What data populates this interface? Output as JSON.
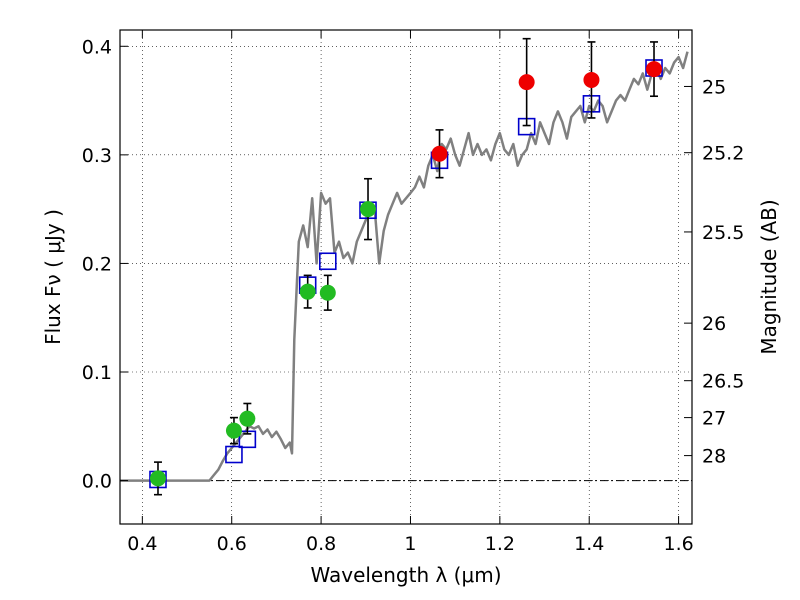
{
  "chart_data": {
    "type": "scatter",
    "xlabel": "Wavelength  λ (μm)",
    "ylabel": "Flux  Fν  ( μJy )",
    "y2label": "Magnitude (AB)",
    "xlim": [
      0.35,
      1.63
    ],
    "ylim": [
      -0.04,
      0.415
    ],
    "grid": true,
    "x_ticks": [
      0.4,
      0.6,
      0.8,
      1.0,
      1.2,
      1.4,
      1.6
    ],
    "x_tick_labels": [
      "0.4",
      "0.6",
      "0.8",
      "1",
      "1.2",
      "1.4",
      "1.6"
    ],
    "y_ticks": [
      0.0,
      0.1,
      0.2,
      0.3,
      0.4
    ],
    "y_tick_labels": [
      "0.0",
      "0.1",
      "0.2",
      "0.3",
      "0.4"
    ],
    "y2_ticks": [
      {
        "label": "25",
        "flux": 0.363
      },
      {
        "label": "25.2",
        "flux": 0.302
      },
      {
        "label": "25.5",
        "flux": 0.229
      },
      {
        "label": "26",
        "flux": 0.145
      },
      {
        "label": "26.5",
        "flux": 0.092
      },
      {
        "label": "27",
        "flux": 0.058
      },
      {
        "label": "28",
        "flux": 0.023
      }
    ],
    "colors": {
      "model": "#808080",
      "model_photometry": "#0000cc",
      "green_points": "#22bb22",
      "red_points": "#ee0000",
      "errorbars": "#000000"
    },
    "series": [
      {
        "type": "line",
        "x": [
          0.35,
          0.55,
          0.56,
          0.57,
          0.58,
          0.59,
          0.6,
          0.61,
          0.62,
          0.63,
          0.64,
          0.65,
          0.66,
          0.67,
          0.68,
          0.69,
          0.7,
          0.71,
          0.72,
          0.73,
          0.735,
          0.74,
          0.75,
          0.76,
          0.77,
          0.78,
          0.79,
          0.8,
          0.81,
          0.82,
          0.83,
          0.84,
          0.85,
          0.86,
          0.87,
          0.88,
          0.89,
          0.9,
          0.91,
          0.92,
          0.93,
          0.94,
          0.95,
          0.96,
          0.97,
          0.98,
          0.99,
          1.0,
          1.01,
          1.02,
          1.03,
          1.04,
          1.05,
          1.06,
          1.07,
          1.08,
          1.09,
          1.1,
          1.11,
          1.12,
          1.13,
          1.14,
          1.15,
          1.16,
          1.17,
          1.18,
          1.19,
          1.2,
          1.21,
          1.22,
          1.23,
          1.24,
          1.25,
          1.26,
          1.27,
          1.28,
          1.29,
          1.3,
          1.31,
          1.32,
          1.33,
          1.34,
          1.35,
          1.36,
          1.37,
          1.38,
          1.39,
          1.4,
          1.41,
          1.42,
          1.43,
          1.44,
          1.45,
          1.46,
          1.47,
          1.48,
          1.49,
          1.5,
          1.51,
          1.52,
          1.53,
          1.54,
          1.55,
          1.56,
          1.57,
          1.58,
          1.59,
          1.6,
          1.61,
          1.62
        ],
        "y": [
          0.0,
          0.0,
          0.005,
          0.01,
          0.018,
          0.025,
          0.03,
          0.035,
          0.04,
          0.045,
          0.05,
          0.048,
          0.05,
          0.043,
          0.047,
          0.04,
          0.045,
          0.038,
          0.03,
          0.035,
          0.025,
          0.13,
          0.22,
          0.235,
          0.215,
          0.26,
          0.2,
          0.265,
          0.255,
          0.26,
          0.21,
          0.22,
          0.205,
          0.21,
          0.2,
          0.22,
          0.23,
          0.24,
          0.255,
          0.25,
          0.2,
          0.23,
          0.245,
          0.255,
          0.265,
          0.255,
          0.26,
          0.265,
          0.27,
          0.28,
          0.27,
          0.29,
          0.3,
          0.285,
          0.31,
          0.305,
          0.315,
          0.3,
          0.29,
          0.305,
          0.32,
          0.3,
          0.31,
          0.3,
          0.305,
          0.295,
          0.31,
          0.32,
          0.305,
          0.3,
          0.31,
          0.29,
          0.3,
          0.305,
          0.32,
          0.31,
          0.33,
          0.32,
          0.31,
          0.33,
          0.34,
          0.33,
          0.315,
          0.335,
          0.34,
          0.345,
          0.33,
          0.345,
          0.34,
          0.35,
          0.345,
          0.33,
          0.34,
          0.35,
          0.355,
          0.35,
          0.36,
          0.37,
          0.365,
          0.375,
          0.36,
          0.375,
          0.38,
          0.37,
          0.38,
          0.375,
          0.385,
          0.39,
          0.38,
          0.395
        ]
      },
      {
        "type": "scatter_open_square",
        "x": [
          0.435,
          0.605,
          0.635,
          0.77,
          0.815,
          0.905,
          1.065,
          1.26,
          1.405,
          1.545
        ],
        "y": [
          0.001,
          0.024,
          0.038,
          0.18,
          0.202,
          0.249,
          0.295,
          0.326,
          0.347,
          0.38
        ]
      },
      {
        "type": "scatter_errorbar",
        "x": [
          0.435,
          0.605,
          0.635,
          0.77,
          0.815,
          0.905
        ],
        "y": [
          0.002,
          0.046,
          0.057,
          0.174,
          0.173,
          0.25
        ],
        "yerr": [
          0.015,
          0.012,
          0.014,
          0.015,
          0.016,
          0.028
        ]
      },
      {
        "type": "scatter_errorbar",
        "x": [
          1.065,
          1.26,
          1.405,
          1.545
        ],
        "y": [
          0.301,
          0.367,
          0.369,
          0.379
        ],
        "yerr": [
          0.022,
          0.04,
          0.035,
          0.025
        ]
      }
    ]
  }
}
